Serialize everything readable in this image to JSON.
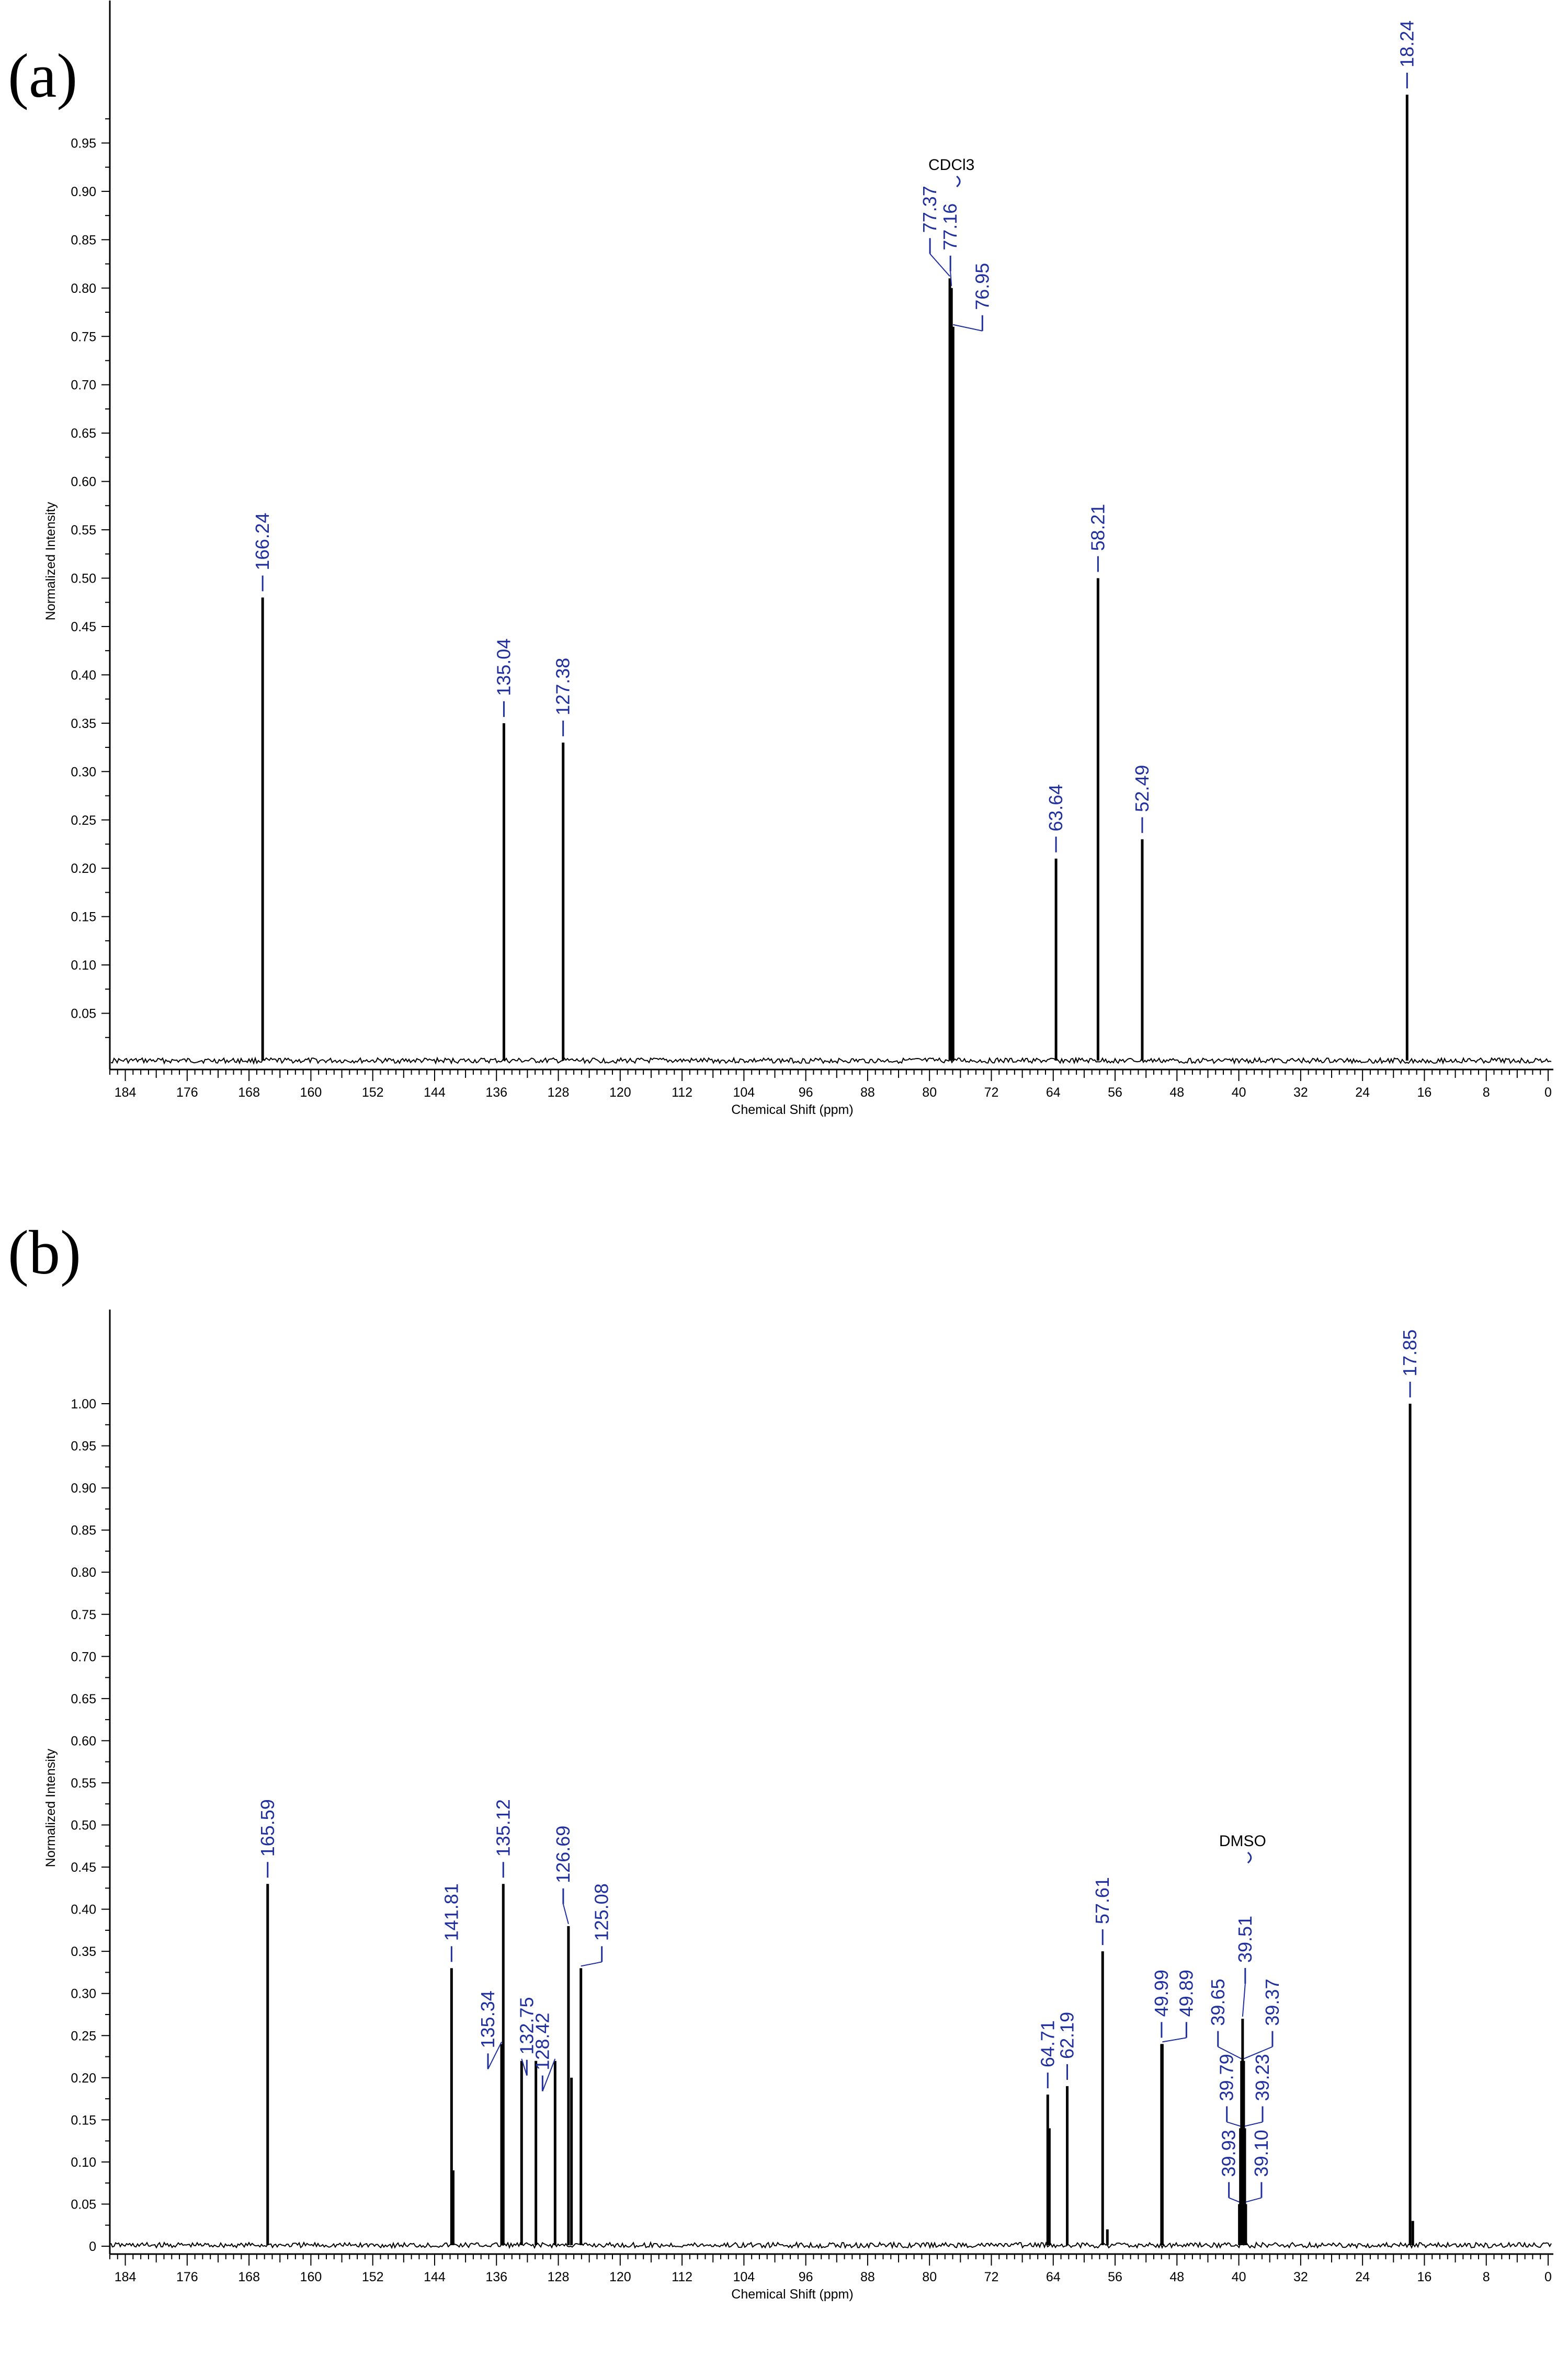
{
  "chart_data": [
    {
      "type": "line",
      "panel_label": "(a)",
      "xlabel": "Chemical Shift (ppm)",
      "ylabel": "Normalized Intensity",
      "xlim": [
        186,
        0
      ],
      "ylim": [
        0,
        1.0
      ],
      "x_ticks": [
        "184",
        "176",
        "168",
        "160",
        "152",
        "144",
        "136",
        "128",
        "120",
        "112",
        "104",
        "96",
        "88",
        "80",
        "72",
        "64",
        "56",
        "48",
        "40",
        "32",
        "24",
        "16",
        "8",
        "0"
      ],
      "y_ticks": [
        "0.05",
        "0.10",
        "0.15",
        "0.20",
        "0.25",
        "0.30",
        "0.35",
        "0.40",
        "0.45",
        "0.50",
        "0.55",
        "0.60",
        "0.65",
        "0.70",
        "0.75",
        "0.80",
        "0.85",
        "0.90",
        "0.95"
      ],
      "series": [
        {
          "peaks": [
            {
              "x": 166.24,
              "y": 0.48,
              "label": "166.24"
            },
            {
              "x": 135.04,
              "y": 0.35,
              "label": "135.04"
            },
            {
              "x": 127.38,
              "y": 0.33,
              "label": "127.38"
            },
            {
              "x": 77.37,
              "y": 0.81,
              "label": "77.37"
            },
            {
              "x": 77.16,
              "y": 0.8,
              "label": "77.16"
            },
            {
              "x": 76.95,
              "y": 0.76,
              "label": "76.95"
            },
            {
              "x": 63.64,
              "y": 0.21,
              "label": "63.64"
            },
            {
              "x": 58.21,
              "y": 0.5,
              "label": "58.21"
            },
            {
              "x": 52.49,
              "y": 0.23,
              "label": "52.49"
            },
            {
              "x": 18.24,
              "y": 1.0,
              "label": "18.24"
            }
          ]
        }
      ],
      "annotations": [
        {
          "text": "CDCl3"
        }
      ]
    },
    {
      "type": "line",
      "panel_label": "(b)",
      "xlabel": "Chemical Shift (ppm)",
      "ylabel": "Normalized Intensity",
      "xlim": [
        186,
        0
      ],
      "ylim": [
        0,
        1.0
      ],
      "x_ticks": [
        "184",
        "176",
        "168",
        "160",
        "152",
        "144",
        "136",
        "128",
        "120",
        "112",
        "104",
        "96",
        "88",
        "80",
        "72",
        "64",
        "56",
        "48",
        "40",
        "32",
        "24",
        "16",
        "8",
        "0"
      ],
      "y_ticks": [
        "0",
        "0.05",
        "0.10",
        "0.15",
        "0.20",
        "0.25",
        "0.30",
        "0.35",
        "0.40",
        "0.45",
        "0.50",
        "0.55",
        "0.60",
        "0.65",
        "0.70",
        "0.75",
        "0.80",
        "0.85",
        "0.90",
        "0.95",
        "1.00"
      ],
      "series": [
        {
          "peaks": [
            {
              "x": 165.59,
              "y": 0.43,
              "label": "165.59"
            },
            {
              "x": 141.81,
              "y": 0.33,
              "label": "141.81"
            },
            {
              "x": 141.6,
              "y": 0.09,
              "label": ""
            },
            {
              "x": 135.34,
              "y": 0.24,
              "label": "135.34"
            },
            {
              "x": 135.12,
              "y": 0.43,
              "label": "135.12"
            },
            {
              "x": 132.75,
              "y": 0.22,
              "label": "132.75"
            },
            {
              "x": 130.9,
              "y": 0.22,
              "label": ""
            },
            {
              "x": 128.42,
              "y": 0.22,
              "label": "128.42"
            },
            {
              "x": 126.69,
              "y": 0.38,
              "label": "126.69"
            },
            {
              "x": 126.3,
              "y": 0.2,
              "label": ""
            },
            {
              "x": 125.08,
              "y": 0.33,
              "label": "125.08"
            },
            {
              "x": 64.71,
              "y": 0.18,
              "label": "64.71"
            },
            {
              "x": 64.5,
              "y": 0.14,
              "label": ""
            },
            {
              "x": 62.19,
              "y": 0.19,
              "label": "62.19"
            },
            {
              "x": 57.61,
              "y": 0.35,
              "label": "57.61"
            },
            {
              "x": 57.0,
              "y": 0.02,
              "label": ""
            },
            {
              "x": 49.99,
              "y": 0.24,
              "label": "49.99"
            },
            {
              "x": 49.89,
              "y": 0.24,
              "label": "49.89"
            },
            {
              "x": 39.93,
              "y": 0.05,
              "label": "39.93"
            },
            {
              "x": 39.79,
              "y": 0.14,
              "label": "39.79"
            },
            {
              "x": 39.65,
              "y": 0.22,
              "label": "39.65"
            },
            {
              "x": 39.51,
              "y": 0.27,
              "label": "39.51"
            },
            {
              "x": 39.37,
              "y": 0.22,
              "label": "39.37"
            },
            {
              "x": 39.23,
              "y": 0.14,
              "label": "39.23"
            },
            {
              "x": 39.1,
              "y": 0.05,
              "label": "39.10"
            },
            {
              "x": 17.85,
              "y": 1.0,
              "label": "17.85"
            },
            {
              "x": 17.5,
              "y": 0.03,
              "label": ""
            }
          ]
        }
      ],
      "annotations": [
        {
          "text": "DMSO"
        }
      ]
    }
  ],
  "colors": {
    "peak_label": "#1f2f9e",
    "trace": "#000000"
  }
}
